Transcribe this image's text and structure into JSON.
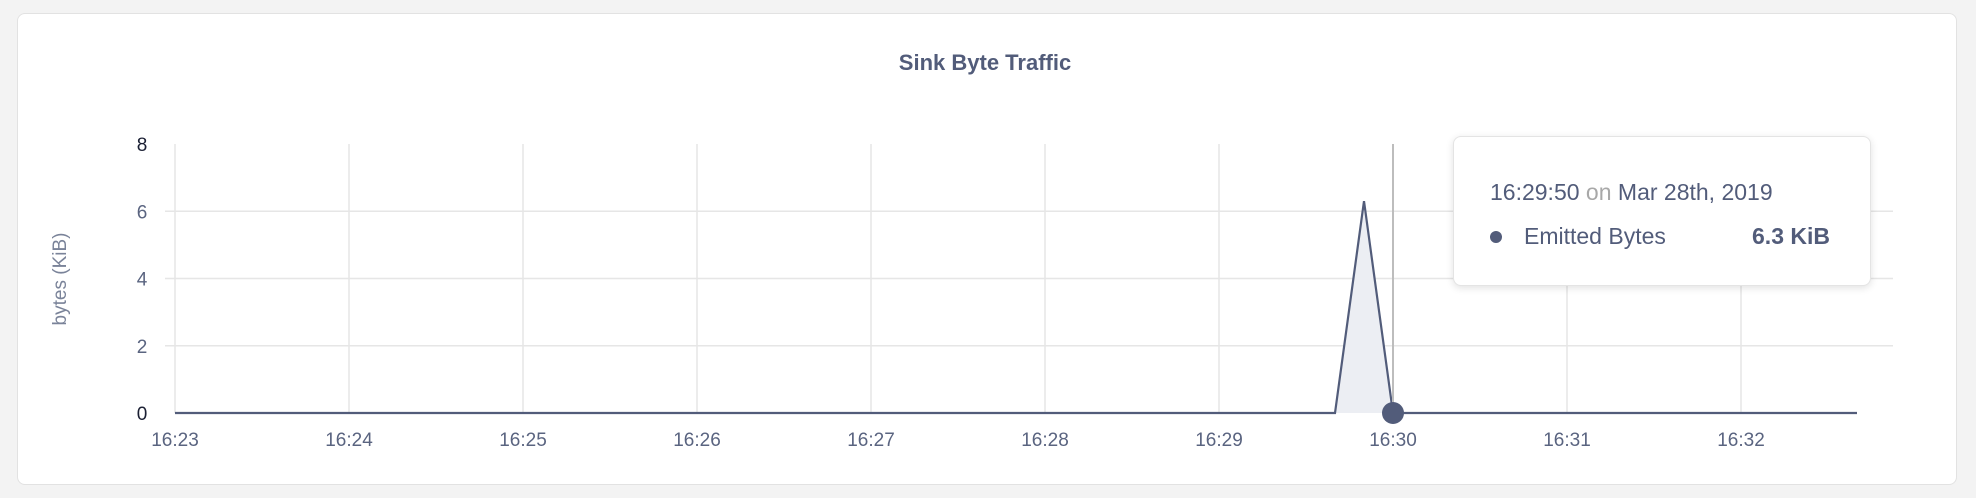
{
  "chart_data": {
    "type": "area",
    "title": "Sink Byte Traffic",
    "xlabel": "",
    "ylabel": "bytes (KiB)",
    "x_ticks": [
      "16:23",
      "16:24",
      "16:25",
      "16:26",
      "16:27",
      "16:28",
      "16:29",
      "16:30",
      "16:31",
      "16:32"
    ],
    "y_ticks": [
      "0",
      "2",
      "4",
      "6",
      "8"
    ],
    "ylim": [
      0,
      8
    ],
    "xlim": [
      "16:23:00",
      "16:32:50"
    ],
    "grid": true,
    "series": [
      {
        "name": "Emitted Bytes",
        "points": [
          {
            "x": "16:23:00",
            "y": 0
          },
          {
            "x": "16:29:40",
            "y": 0
          },
          {
            "x": "16:29:50",
            "y": 6.3
          },
          {
            "x": "16:30:00",
            "y": 0
          },
          {
            "x": "16:32:40",
            "y": 0
          }
        ]
      }
    ],
    "colors": {
      "line": "#525c7a",
      "fill": "#eceef3",
      "grid": "#e6e6e6",
      "text": "#5a6480"
    }
  },
  "tooltip": {
    "time": "16:29:50",
    "on": "on",
    "date": "Mar 28th, 2019",
    "series_name": "Emitted Bytes",
    "value": "6.3 KiB",
    "hover_x": "16:30:00"
  }
}
